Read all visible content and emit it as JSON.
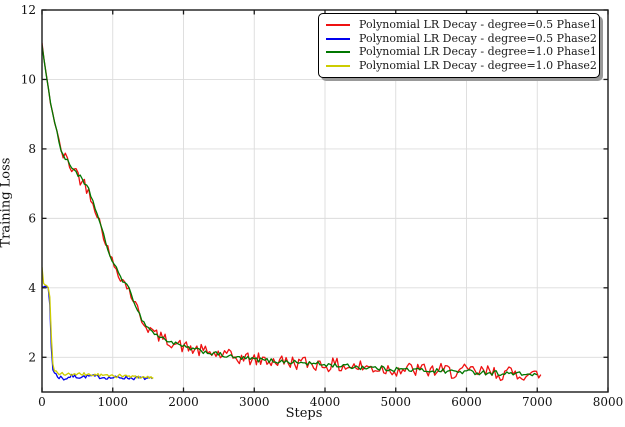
{
  "figure": {
    "background": "#ffffff"
  },
  "chart_data": {
    "type": "line",
    "title": "",
    "xlabel": "Steps",
    "ylabel": "Training Loss",
    "xlim": [
      0,
      8000
    ],
    "ylim": [
      1,
      12
    ],
    "xticks": [
      0,
      1000,
      2000,
      3000,
      4000,
      5000,
      6000,
      7000,
      8000
    ],
    "yticks": [
      2,
      4,
      6,
      8,
      10,
      12
    ],
    "grid": true,
    "grid_color": "#dcdcdc",
    "spine_color": "#1a1a1a",
    "tick_label_color": "#111111",
    "legend": {
      "position": "upper right",
      "background": "#ffffff",
      "border_color": "#000000",
      "shadow_color": "#999999"
    },
    "series": [
      {
        "name": "Polynomial LR Decay - degree=0.5 Phase1",
        "color": "#ee1111",
        "seed": 42,
        "noise_scale": 1.7,
        "sample_step": 30,
        "points": [
          [
            0,
            11.05,
            0.02
          ],
          [
            40,
            10.4,
            0.03
          ],
          [
            80,
            9.85,
            0.03
          ],
          [
            120,
            9.35,
            0.04
          ],
          [
            160,
            8.95,
            0.04
          ],
          [
            200,
            8.6,
            0.05
          ],
          [
            240,
            8.2,
            0.06
          ],
          [
            280,
            7.9,
            0.09
          ],
          [
            330,
            7.72,
            0.12
          ],
          [
            400,
            7.52,
            0.13
          ],
          [
            470,
            7.38,
            0.13
          ],
          [
            540,
            7.18,
            0.13
          ],
          [
            610,
            6.95,
            0.12
          ],
          [
            660,
            6.82,
            0.11
          ],
          [
            720,
            6.5,
            0.1
          ],
          [
            780,
            6.12,
            0.09
          ],
          [
            840,
            5.72,
            0.08
          ],
          [
            900,
            5.32,
            0.08
          ],
          [
            960,
            4.92,
            0.08
          ],
          [
            1020,
            4.66,
            0.09
          ],
          [
            1080,
            4.45,
            0.09
          ],
          [
            1140,
            4.22,
            0.1
          ],
          [
            1220,
            4.0,
            0.1
          ],
          [
            1300,
            3.62,
            0.1
          ],
          [
            1360,
            3.32,
            0.1
          ],
          [
            1430,
            3.02,
            0.1
          ],
          [
            1500,
            2.86,
            0.1
          ],
          [
            1600,
            2.66,
            0.1
          ],
          [
            1700,
            2.55,
            0.1
          ],
          [
            1850,
            2.42,
            0.1
          ],
          [
            2000,
            2.3,
            0.11
          ],
          [
            2200,
            2.2,
            0.11
          ],
          [
            2450,
            2.1,
            0.12
          ],
          [
            2700,
            2.0,
            0.12
          ],
          [
            3000,
            1.94,
            0.12
          ],
          [
            3300,
            1.89,
            0.12
          ],
          [
            3600,
            1.85,
            0.12
          ],
          [
            4000,
            1.79,
            0.12
          ],
          [
            4400,
            1.73,
            0.13
          ],
          [
            4800,
            1.68,
            0.13
          ],
          [
            5200,
            1.64,
            0.13
          ],
          [
            5600,
            1.61,
            0.13
          ],
          [
            6000,
            1.58,
            0.13
          ],
          [
            6400,
            1.55,
            0.13
          ],
          [
            6700,
            1.52,
            0.12
          ],
          [
            7050,
            1.5,
            0.09
          ]
        ]
      },
      {
        "name": "Polynomial LR Decay - degree=0.5 Phase2",
        "color": "#0000ee",
        "seed": 7,
        "noise_scale": 1.0,
        "sample_step": 22,
        "points": [
          [
            0,
            4.05,
            0.02
          ],
          [
            40,
            4.03,
            0.02
          ],
          [
            95,
            4.0,
            0.02
          ],
          [
            112,
            3.45,
            0.02
          ],
          [
            128,
            2.45,
            0.03
          ],
          [
            144,
            1.8,
            0.04
          ],
          [
            160,
            1.57,
            0.05
          ],
          [
            230,
            1.44,
            0.07
          ],
          [
            320,
            1.38,
            0.07
          ],
          [
            420,
            1.46,
            0.05
          ],
          [
            540,
            1.43,
            0.05
          ],
          [
            680,
            1.46,
            0.05
          ],
          [
            820,
            1.43,
            0.05
          ],
          [
            960,
            1.41,
            0.05
          ],
          [
            1120,
            1.42,
            0.05
          ],
          [
            1280,
            1.4,
            0.05
          ],
          [
            1430,
            1.4,
            0.05
          ],
          [
            1560,
            1.38,
            0.04
          ]
        ]
      },
      {
        "name": "Polynomial LR Decay - degree=1.0 Phase1",
        "color": "#007700",
        "seed": 1234,
        "noise_scale": 0.55,
        "sample_step": 30,
        "points": [
          [
            0,
            11.0,
            0.02
          ],
          [
            40,
            10.4,
            0.03
          ],
          [
            80,
            9.85,
            0.03
          ],
          [
            120,
            9.35,
            0.04
          ],
          [
            160,
            8.95,
            0.04
          ],
          [
            200,
            8.6,
            0.05
          ],
          [
            240,
            8.2,
            0.06
          ],
          [
            280,
            7.9,
            0.09
          ],
          [
            330,
            7.72,
            0.12
          ],
          [
            400,
            7.52,
            0.13
          ],
          [
            470,
            7.38,
            0.13
          ],
          [
            540,
            7.18,
            0.13
          ],
          [
            610,
            6.95,
            0.12
          ],
          [
            660,
            6.82,
            0.11
          ],
          [
            720,
            6.5,
            0.1
          ],
          [
            780,
            6.12,
            0.09
          ],
          [
            840,
            5.72,
            0.08
          ],
          [
            900,
            5.32,
            0.08
          ],
          [
            960,
            4.92,
            0.08
          ],
          [
            1020,
            4.66,
            0.09
          ],
          [
            1080,
            4.45,
            0.09
          ],
          [
            1140,
            4.22,
            0.1
          ],
          [
            1220,
            4.0,
            0.1
          ],
          [
            1300,
            3.62,
            0.1
          ],
          [
            1360,
            3.32,
            0.1
          ],
          [
            1430,
            3.02,
            0.1
          ],
          [
            1500,
            2.86,
            0.1
          ],
          [
            1600,
            2.66,
            0.1
          ],
          [
            1700,
            2.55,
            0.1
          ],
          [
            1850,
            2.42,
            0.1
          ],
          [
            2000,
            2.3,
            0.11
          ],
          [
            2200,
            2.2,
            0.11
          ],
          [
            2450,
            2.1,
            0.12
          ],
          [
            2700,
            2.0,
            0.12
          ],
          [
            3000,
            1.94,
            0.12
          ],
          [
            3300,
            1.89,
            0.12
          ],
          [
            3600,
            1.85,
            0.12
          ],
          [
            4000,
            1.79,
            0.12
          ],
          [
            4400,
            1.73,
            0.13
          ],
          [
            4800,
            1.68,
            0.13
          ],
          [
            5200,
            1.64,
            0.13
          ],
          [
            5600,
            1.61,
            0.13
          ],
          [
            6000,
            1.58,
            0.13
          ],
          [
            6400,
            1.55,
            0.13
          ],
          [
            6700,
            1.52,
            0.12
          ],
          [
            7000,
            1.5,
            0.09
          ]
        ]
      },
      {
        "name": "Polynomial LR Decay - degree=1.0 Phase2",
        "color": "#cccc00",
        "seed": 99,
        "noise_scale": 1.0,
        "sample_step": 22,
        "points": [
          [
            0,
            4.6,
            0.01
          ],
          [
            18,
            4.12,
            0.02
          ],
          [
            60,
            4.06,
            0.03
          ],
          [
            100,
            4.02,
            0.02
          ],
          [
            116,
            3.55,
            0.02
          ],
          [
            132,
            2.65,
            0.03
          ],
          [
            150,
            1.9,
            0.04
          ],
          [
            168,
            1.62,
            0.05
          ],
          [
            240,
            1.55,
            0.06
          ],
          [
            330,
            1.52,
            0.06
          ],
          [
            460,
            1.5,
            0.05
          ],
          [
            620,
            1.51,
            0.05
          ],
          [
            780,
            1.49,
            0.05
          ],
          [
            950,
            1.47,
            0.05
          ],
          [
            1120,
            1.46,
            0.05
          ],
          [
            1300,
            1.44,
            0.05
          ],
          [
            1470,
            1.43,
            0.04
          ],
          [
            1570,
            1.42,
            0.03
          ]
        ]
      }
    ]
  }
}
